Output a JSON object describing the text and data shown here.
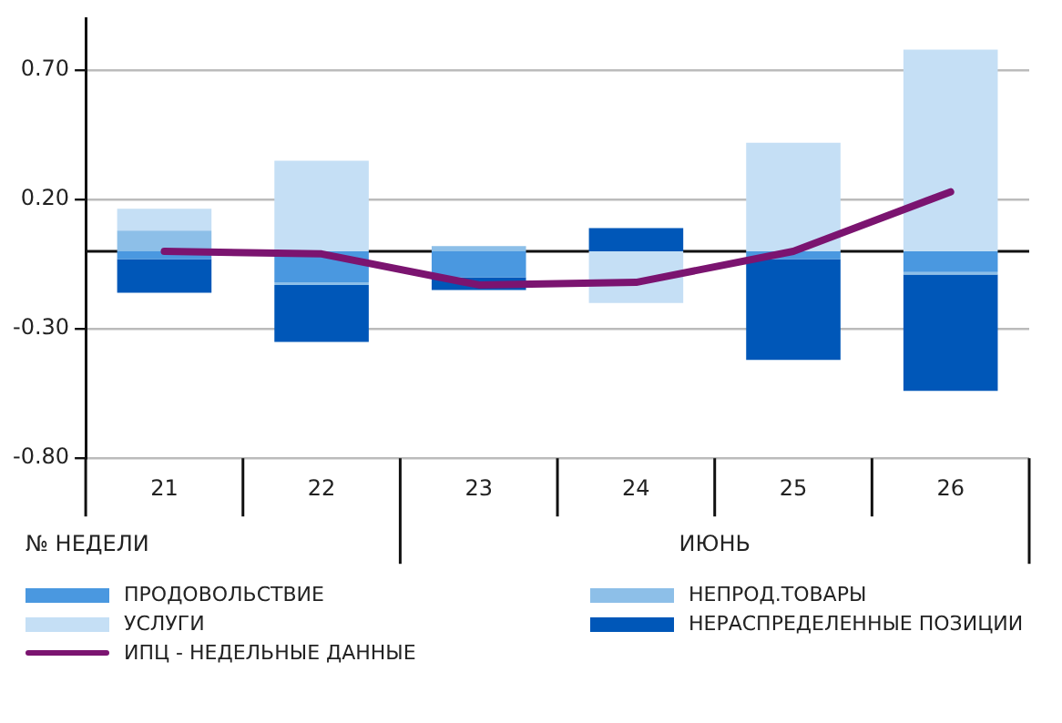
{
  "chart_data": {
    "type": "bar",
    "stacked": true,
    "categories": [
      "21",
      "22",
      "23",
      "24",
      "25",
      "26"
    ],
    "series": [
      {
        "name": "ПРОДОВОЛЬСТВИЕ",
        "color": "#4a98e0",
        "values": [
          -0.03,
          -0.12,
          -0.1,
          null,
          -0.03,
          -0.08
        ]
      },
      {
        "name": "НЕПРОД.ТОВАРЫ",
        "color": "#8dbfe8",
        "values": [
          0.08,
          -0.01,
          0.02,
          null,
          null,
          -0.01
        ]
      },
      {
        "name": "УСЛУГИ",
        "color": "#c5dff5",
        "values": [
          0.085,
          0.35,
          null,
          -0.2,
          0.42,
          0.78
        ]
      },
      {
        "name": "НЕРАСПРЕДЕЛЕННЫЕ ПОЗИЦИИ",
        "color": "#0057b8",
        "values": [
          -0.13,
          -0.22,
          -0.05,
          0.09,
          -0.39,
          -0.45
        ]
      },
      {
        "name": "ИПЦ - НЕДЕЛЬНЫЕ ДАННЫЕ",
        "type": "line",
        "color": "#7b1470",
        "values": [
          0.0,
          -0.01,
          -0.13,
          -0.12,
          0.0,
          0.23
        ]
      }
    ],
    "ylim": [
      -0.8,
      0.9
    ],
    "yticks": [
      {
        "value": -0.8,
        "label": "-0.80"
      },
      {
        "value": -0.3,
        "label": "-0.30"
      },
      {
        "value": 0.2,
        "label": "0.20"
      },
      {
        "value": 0.7,
        "label": "0.70"
      }
    ],
    "grid": "y",
    "legend": "bottom",
    "marker": "none",
    "annotations": [
      "№ НЕДЕЛИ",
      "ИЮНЬ"
    ]
  }
}
